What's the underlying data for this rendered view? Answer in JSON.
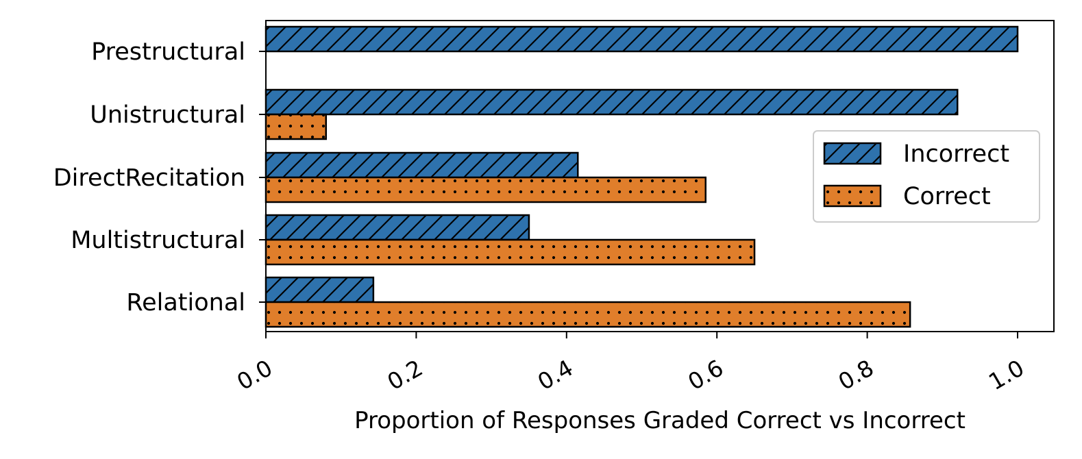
{
  "chart_data": {
    "type": "bar",
    "orientation": "horizontal",
    "categories": [
      "Prestructural",
      "Unistructural",
      "DirectRecitation",
      "Multistructural",
      "Relational"
    ],
    "series": [
      {
        "name": "Incorrect",
        "values": [
          1.0,
          0.92,
          0.415,
          0.35,
          0.143
        ],
        "color": "#2e72ad",
        "pattern": "diagonal-hatch"
      },
      {
        "name": "Correct",
        "values": [
          0.0,
          0.08,
          0.585,
          0.65,
          0.857
        ],
        "color": "#e07e2b",
        "pattern": "dots"
      }
    ],
    "xlabel": "Proportion of Responses Graded Correct vs Incorrect",
    "ylabel": "",
    "xlim": [
      0.0,
      1.05
    ],
    "xticks": [
      "0.0",
      "0.2",
      "0.4",
      "0.6",
      "0.8",
      "1.0"
    ],
    "xtick_rotation": "30 degrees",
    "grid": false,
    "legend_position": "center-right"
  }
}
